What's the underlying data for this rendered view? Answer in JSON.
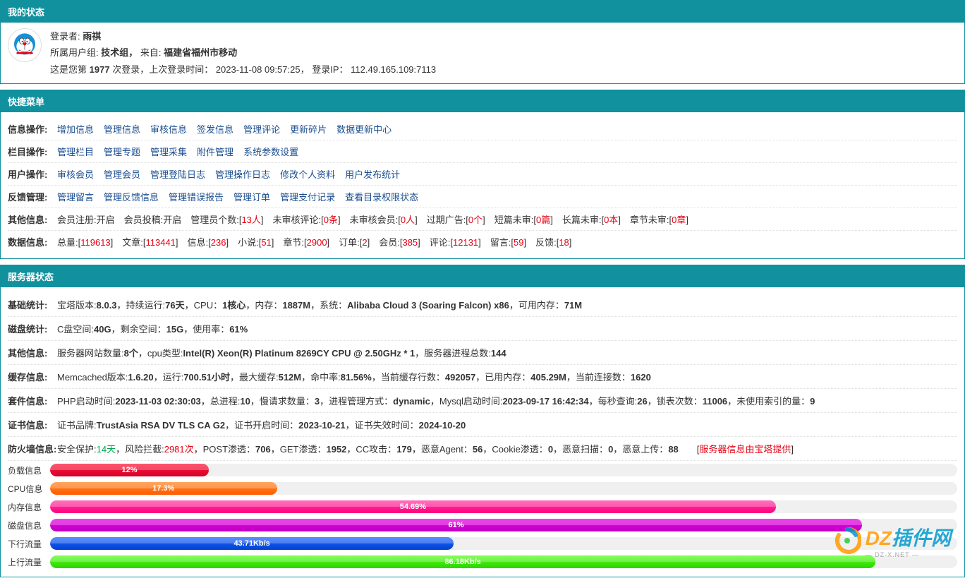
{
  "colors": {
    "teal": "#11919e",
    "link": "#1a4d8f",
    "red": "#e60012",
    "green": "#00a650"
  },
  "status_panel": {
    "title": "我的状态",
    "login_label": "登录者:",
    "login_name": "雨祺",
    "group_label": "所属用户组:",
    "group_name": "技术组，",
    "from_label": "来自:",
    "from_value": "福建省福州市移动",
    "count_prefix": "这是您第",
    "login_count": "1977",
    "count_suffix": "次登录，上次登录时间：",
    "last_login_time": "2023-11-08 09:57:25，",
    "ip_label": "登录IP：",
    "ip_value": "112.49.165.109:7113"
  },
  "quick_menu": {
    "title": "快捷菜单",
    "rows": [
      {
        "label": "信息操作:",
        "links": [
          "增加信息",
          "管理信息",
          "审核信息",
          "签发信息",
          "管理评论",
          "更新碎片",
          "数据更新中心"
        ]
      },
      {
        "label": "栏目操作:",
        "links": [
          "管理栏目",
          "管理专题",
          "管理采集",
          "附件管理",
          "系统参数设置"
        ]
      },
      {
        "label": "用户操作:",
        "links": [
          "审核会员",
          "管理会员",
          "管理登陆日志",
          "管理操作日志",
          "修改个人资料",
          "用户发布统计"
        ]
      },
      {
        "label": "反馈管理:",
        "links": [
          "管理留言",
          "管理反馈信息",
          "管理错误报告",
          "管理订单",
          "管理支付记录",
          "查看目录权限状态"
        ]
      }
    ],
    "other_info": {
      "label": "其他信息:",
      "segments": [
        {
          "t": "会员注册:开启　会员投稿:开启　管理员个数:["
        },
        {
          "t": "13人",
          "red": true
        },
        {
          "t": "]　未审核评论:["
        },
        {
          "t": "0条",
          "red": true
        },
        {
          "t": "]　未审核会员:["
        },
        {
          "t": "0人",
          "red": true
        },
        {
          "t": "]　过期广告:["
        },
        {
          "t": "0个",
          "red": true
        },
        {
          "t": "]　短篇未审:["
        },
        {
          "t": "0篇",
          "red": true
        },
        {
          "t": "]　长篇未审:["
        },
        {
          "t": "0本",
          "red": true
        },
        {
          "t": "]　章节未审:["
        },
        {
          "t": "0章",
          "red": true
        },
        {
          "t": "]"
        }
      ]
    },
    "data_info": {
      "label": "数据信息:",
      "segments": [
        {
          "t": "总量:["
        },
        {
          "t": "119613",
          "red": true
        },
        {
          "t": "]　文章:["
        },
        {
          "t": "113441",
          "red": true
        },
        {
          "t": "]　信息:["
        },
        {
          "t": "236",
          "red": true
        },
        {
          "t": "]　小说:["
        },
        {
          "t": "51",
          "red": true
        },
        {
          "t": "]　章节:["
        },
        {
          "t": "2900",
          "red": true
        },
        {
          "t": "]　订单:["
        },
        {
          "t": "2",
          "red": true
        },
        {
          "t": "]　会员:["
        },
        {
          "t": "385",
          "red": true
        },
        {
          "t": "]　评论:["
        },
        {
          "t": "12131",
          "red": true
        },
        {
          "t": "]　留言:["
        },
        {
          "t": "59",
          "red": true
        },
        {
          "t": "]　反馈:["
        },
        {
          "t": "18",
          "red": true
        },
        {
          "t": "]"
        }
      ]
    }
  },
  "server_panel": {
    "title": "服务器状态",
    "rows": [
      {
        "label": "基础统计:",
        "segments": [
          {
            "t": "宝塔版本:"
          },
          {
            "t": "8.0.3",
            "b": true
          },
          {
            "t": "，持续运行:"
          },
          {
            "t": "76天",
            "b": true
          },
          {
            "t": "，CPU："
          },
          {
            "t": "1核心",
            "b": true
          },
          {
            "t": "，内存："
          },
          {
            "t": "1887M",
            "b": true
          },
          {
            "t": "，系统："
          },
          {
            "t": "Alibaba Cloud 3 (Soaring Falcon) x86",
            "b": true
          },
          {
            "t": "，可用内存："
          },
          {
            "t": "71M",
            "b": true
          }
        ]
      },
      {
        "label": "磁盘统计:",
        "segments": [
          {
            "t": "C盘空间:"
          },
          {
            "t": "40G",
            "b": true
          },
          {
            "t": "，剩余空间："
          },
          {
            "t": "15G",
            "b": true
          },
          {
            "t": "，使用率："
          },
          {
            "t": "61%",
            "b": true
          }
        ]
      },
      {
        "label": "其他信息:",
        "segments": [
          {
            "t": "服务器网站数量:"
          },
          {
            "t": "8个",
            "b": true
          },
          {
            "t": "，cpu类型:"
          },
          {
            "t": "Intel(R) Xeon(R) Platinum 8269CY CPU @ 2.50GHz * 1",
            "b": true
          },
          {
            "t": "，服务器进程总数:"
          },
          {
            "t": "144",
            "b": true
          }
        ]
      },
      {
        "label": "缓存信息:",
        "segments": [
          {
            "t": "Memcached版本:"
          },
          {
            "t": "1.6.20",
            "b": true
          },
          {
            "t": "，运行:"
          },
          {
            "t": "700.51小时",
            "b": true
          },
          {
            "t": "，最大缓存:"
          },
          {
            "t": "512M",
            "b": true
          },
          {
            "t": "，命中率:"
          },
          {
            "t": "81.56%",
            "b": true
          },
          {
            "t": "，当前缓存行数："
          },
          {
            "t": "492057",
            "b": true
          },
          {
            "t": "，已用内存："
          },
          {
            "t": "405.29M",
            "b": true
          },
          {
            "t": "，当前连接数："
          },
          {
            "t": "1620",
            "b": true
          }
        ]
      },
      {
        "label": "套件信息:",
        "segments": [
          {
            "t": "PHP启动时间:"
          },
          {
            "t": "2023-11-03 02:30:03",
            "b": true
          },
          {
            "t": "，总进程:"
          },
          {
            "t": "10",
            "b": true
          },
          {
            "t": "，慢请求数量："
          },
          {
            "t": "3",
            "b": true
          },
          {
            "t": "，进程管理方式："
          },
          {
            "t": "dynamic",
            "b": true
          },
          {
            "t": "，Mysql启动时间:"
          },
          {
            "t": "2023-09-17 16:42:34",
            "b": true
          },
          {
            "t": "，每秒查询:"
          },
          {
            "t": "26",
            "b": true
          },
          {
            "t": "，锁表次数："
          },
          {
            "t": "11006",
            "b": true
          },
          {
            "t": "，未使用索引的量："
          },
          {
            "t": "9",
            "b": true
          }
        ]
      },
      {
        "label": "证书信息:",
        "segments": [
          {
            "t": "证书品牌:"
          },
          {
            "t": "TrustAsia RSA DV TLS CA G2",
            "b": true
          },
          {
            "t": "，证书开启时间："
          },
          {
            "t": "2023-10-21",
            "b": true
          },
          {
            "t": "，证书失效时间："
          },
          {
            "t": "2024-10-20",
            "b": true
          }
        ]
      },
      {
        "label": "防火墙信息:",
        "segments": [
          {
            "t": "安全保护:"
          },
          {
            "t": "14天",
            "green": true
          },
          {
            "t": "，风险拦截:"
          },
          {
            "t": "2981次",
            "red": true
          },
          {
            "t": "，POST渗透："
          },
          {
            "t": "706",
            "b": true
          },
          {
            "t": "，GET渗透："
          },
          {
            "t": "1952",
            "b": true
          },
          {
            "t": "，CC攻击："
          },
          {
            "t": "179",
            "b": true
          },
          {
            "t": "，恶意Agent："
          },
          {
            "t": "56",
            "b": true
          },
          {
            "t": "，Cookie渗透："
          },
          {
            "t": "0",
            "b": true
          },
          {
            "t": "，恶意扫描："
          },
          {
            "t": "0",
            "b": true
          },
          {
            "t": "，恶意上传："
          },
          {
            "t": "88",
            "b": true
          },
          {
            "t": "　　["
          },
          {
            "t": "服务器信息由宝塔提供",
            "red": true,
            "link": true
          },
          {
            "t": "]"
          }
        ]
      }
    ],
    "bars": [
      {
        "label": "负载信息",
        "text": "12%",
        "percent": 17.5,
        "colors": [
          "#ff1a3c",
          "#d4002a"
        ]
      },
      {
        "label": "CPU信息",
        "text": "17.3%",
        "percent": 25,
        "colors": [
          "#ff8a2b",
          "#ff5a00"
        ]
      },
      {
        "label": "内存信息",
        "text": "54.69%",
        "percent": 80,
        "colors": [
          "#ff3fa6",
          "#ff007f"
        ]
      },
      {
        "label": "磁盘信息",
        "text": "61%",
        "percent": 89.5,
        "colors": [
          "#e800e8",
          "#c000c0"
        ]
      },
      {
        "label": "下行流量",
        "text": "43.71Kb/s",
        "percent": 44.5,
        "colors": [
          "#1e66ff",
          "#0040d0"
        ]
      },
      {
        "label": "上行流量",
        "text": "86.18Kb/s",
        "percent": 91,
        "colors": [
          "#5aff1e",
          "#2ad400"
        ]
      }
    ]
  },
  "watermark": {
    "text": "DZ插件网",
    "sub": "— DZ-X.NET —",
    "c1": "#ff9a00",
    "c2": "#0099cc"
  }
}
